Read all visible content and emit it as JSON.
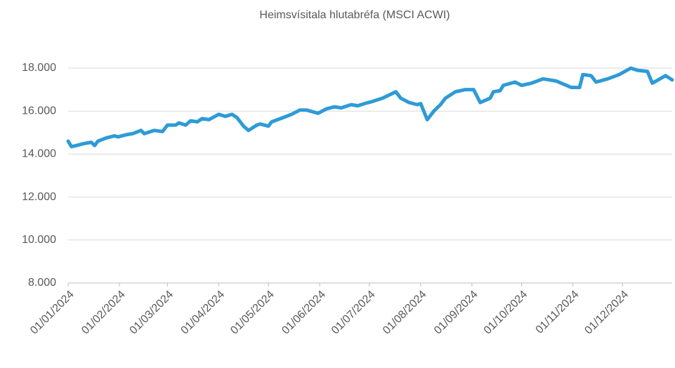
{
  "chart_data": {
    "type": "line",
    "title": "Heimsvísitala hlutabréfa (MSCI ACWI)",
    "x": [
      "2024-01-01",
      "2024-01-03",
      "2024-01-05",
      "2024-01-10",
      "2024-01-15",
      "2024-01-17",
      "2024-01-19",
      "2024-01-24",
      "2024-01-29",
      "2024-01-31",
      "2024-02-05",
      "2024-02-09",
      "2024-02-14",
      "2024-02-16",
      "2024-02-22",
      "2024-02-27",
      "2024-03-01",
      "2024-03-06",
      "2024-03-08",
      "2024-03-12",
      "2024-03-15",
      "2024-03-19",
      "2024-03-22",
      "2024-03-26",
      "2024-04-01",
      "2024-04-05",
      "2024-04-09",
      "2024-04-12",
      "2024-04-16",
      "2024-04-19",
      "2024-04-24",
      "2024-04-26",
      "2024-05-01",
      "2024-05-03",
      "2024-05-10",
      "2024-05-15",
      "2024-05-20",
      "2024-05-24",
      "2024-05-31",
      "2024-06-05",
      "2024-06-10",
      "2024-06-14",
      "2024-06-20",
      "2024-06-24",
      "2024-06-28",
      "2024-07-03",
      "2024-07-09",
      "2024-07-17",
      "2024-07-20",
      "2024-07-25",
      "2024-07-30",
      "2024-08-01",
      "2024-08-05",
      "2024-08-09",
      "2024-08-13",
      "2024-08-16",
      "2024-08-22",
      "2024-08-28",
      "2024-09-02",
      "2024-09-06",
      "2024-09-12",
      "2024-09-14",
      "2024-09-18",
      "2024-09-20",
      "2024-09-27",
      "2024-10-01",
      "2024-10-07",
      "2024-10-14",
      "2024-10-22",
      "2024-10-31",
      "2024-11-05",
      "2024-11-07",
      "2024-11-12",
      "2024-11-15",
      "2024-11-22",
      "2024-11-29",
      "2024-12-06",
      "2024-12-10",
      "2024-12-16",
      "2024-12-19",
      "2024-12-27",
      "2024-12-31"
    ],
    "series": [
      {
        "name": "MSCI ACWI",
        "color": "#2e9bd6",
        "values": [
          14600,
          14350,
          14380,
          14480,
          14550,
          14400,
          14600,
          14750,
          14850,
          14800,
          14900,
          14950,
          15100,
          14950,
          15100,
          15050,
          15350,
          15350,
          15450,
          15350,
          15550,
          15500,
          15650,
          15600,
          15850,
          15750,
          15850,
          15700,
          15300,
          15100,
          15350,
          15400,
          15300,
          15500,
          15700,
          15850,
          16050,
          16050,
          15900,
          16100,
          16200,
          16150,
          16300,
          16250,
          16350,
          16450,
          16600,
          16900,
          16600,
          16400,
          16300,
          16350,
          15600,
          16000,
          16300,
          16600,
          16900,
          17000,
          17000,
          16400,
          16600,
          16900,
          16950,
          17200,
          17350,
          17200,
          17300,
          17500,
          17400,
          17100,
          17100,
          17700,
          17650,
          17350,
          17500,
          17700,
          18000,
          17900,
          17850,
          17300,
          17650,
          17450
        ]
      }
    ],
    "xlim": [
      "2024-01-01",
      "2024-12-31"
    ],
    "xticks": [
      {
        "value": "2024-01-01",
        "label": "01/01/2024"
      },
      {
        "value": "2024-02-01",
        "label": "01/02/2024"
      },
      {
        "value": "2024-03-01",
        "label": "01/03/2024"
      },
      {
        "value": "2024-04-01",
        "label": "01/04/2024"
      },
      {
        "value": "2024-05-01",
        "label": "01/05/2024"
      },
      {
        "value": "2024-06-01",
        "label": "01/06/2024"
      },
      {
        "value": "2024-07-01",
        "label": "01/07/2024"
      },
      {
        "value": "2024-08-01",
        "label": "01/08/2024"
      },
      {
        "value": "2024-09-01",
        "label": "01/09/2024"
      },
      {
        "value": "2024-10-01",
        "label": "01/10/2024"
      },
      {
        "value": "2024-11-01",
        "label": "01/11/2024"
      },
      {
        "value": "2024-12-01",
        "label": "01/12/2024"
      }
    ],
    "ylim": [
      8000,
      18000
    ],
    "yticks": [
      {
        "value": 8000,
        "label": "8.000"
      },
      {
        "value": 10000,
        "label": "10.000"
      },
      {
        "value": 12000,
        "label": "12.000"
      },
      {
        "value": 14000,
        "label": "14.000"
      },
      {
        "value": 16000,
        "label": "16.000"
      },
      {
        "value": 18000,
        "label": "18.000"
      }
    ],
    "grid": true
  }
}
